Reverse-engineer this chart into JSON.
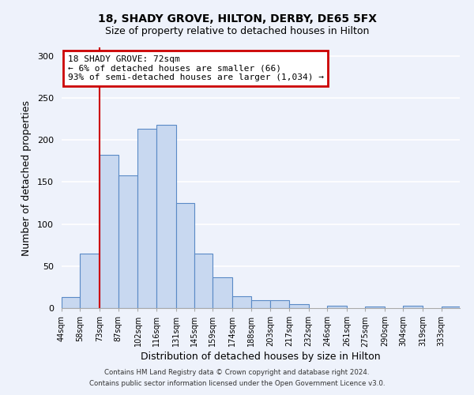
{
  "title1": "18, SHADY GROVE, HILTON, DERBY, DE65 5FX",
  "title2": "Size of property relative to detached houses in Hilton",
  "xlabel": "Distribution of detached houses by size in Hilton",
  "ylabel": "Number of detached properties",
  "bin_labels": [
    "44sqm",
    "58sqm",
    "73sqm",
    "87sqm",
    "102sqm",
    "116sqm",
    "131sqm",
    "145sqm",
    "159sqm",
    "174sqm",
    "188sqm",
    "203sqm",
    "217sqm",
    "232sqm",
    "246sqm",
    "261sqm",
    "275sqm",
    "290sqm",
    "304sqm",
    "319sqm",
    "333sqm"
  ],
  "bar_heights": [
    13,
    65,
    182,
    158,
    213,
    218,
    125,
    65,
    37,
    14,
    9,
    9,
    5,
    0,
    3,
    0,
    2,
    0,
    3,
    0,
    2
  ],
  "bar_color": "#c8d8f0",
  "bar_edge_color": "#5a8ac6",
  "bin_edges": [
    44,
    58,
    73,
    87,
    102,
    116,
    131,
    145,
    159,
    174,
    188,
    203,
    217,
    232,
    246,
    261,
    275,
    290,
    304,
    319,
    333,
    347
  ],
  "vline_x": 73,
  "vline_color": "#cc0000",
  "annotation_title": "18 SHADY GROVE: 72sqm",
  "annotation_line1": "← 6% of detached houses are smaller (66)",
  "annotation_line2": "93% of semi-detached houses are larger (1,034) →",
  "annotation_box_color": "#cc0000",
  "ylim": [
    0,
    310
  ],
  "yticks": [
    0,
    50,
    100,
    150,
    200,
    250,
    300
  ],
  "footnote1": "Contains HM Land Registry data © Crown copyright and database right 2024.",
  "footnote2": "Contains public sector information licensed under the Open Government Licence v3.0.",
  "bg_color": "#eef2fb",
  "plot_bg_color": "#eef2fb"
}
